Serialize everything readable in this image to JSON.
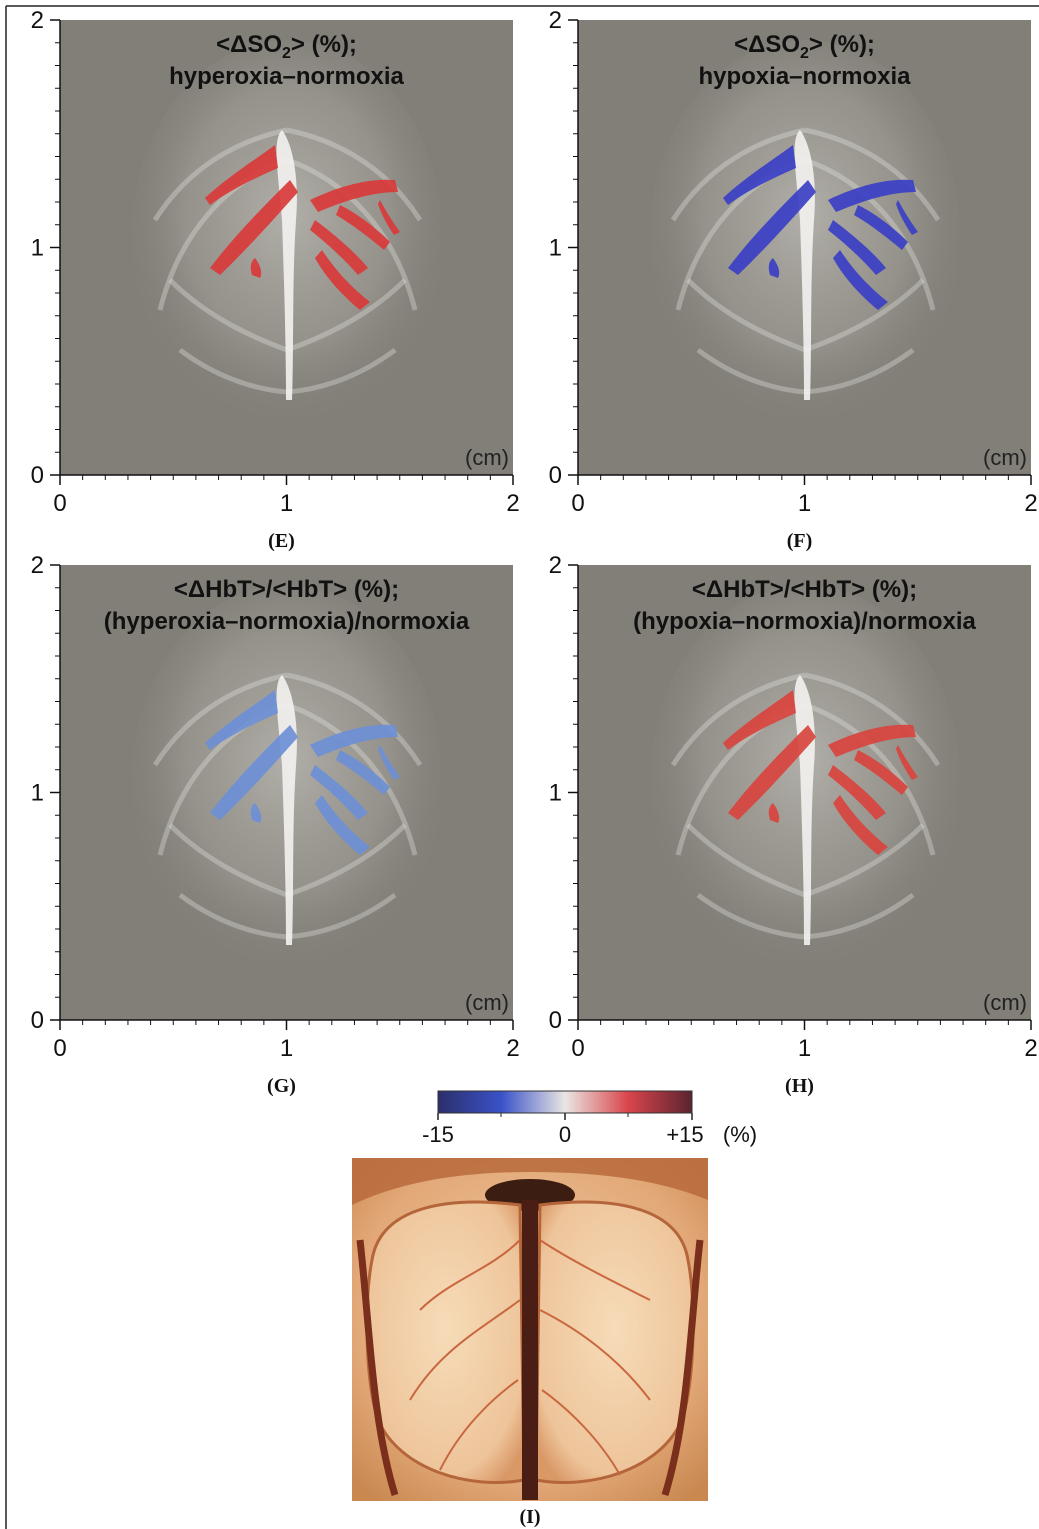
{
  "figure": {
    "panels": [
      {
        "letter": "(E)",
        "title_line1": "<ΔSO",
        "title_sub": "2",
        "title_line1_end": "> (%);",
        "title_line2": "hyperoxia–normoxia",
        "vessel_color": "#d83a3a",
        "x_ticks": [
          "0",
          "1",
          "2"
        ],
        "y_ticks": [
          "0",
          "1",
          "2"
        ],
        "unit": "(cm)"
      },
      {
        "letter": "(F)",
        "title_line1": "<ΔSO",
        "title_sub": "2",
        "title_line1_end": "> (%);",
        "title_line2": "hypoxia–normoxia",
        "vessel_color": "#3b3fc4",
        "x_ticks": [
          "0",
          "1",
          "2"
        ],
        "y_ticks": [
          "0",
          "1",
          "2"
        ],
        "unit": "(cm)"
      },
      {
        "letter": "(G)",
        "title_line1": "<ΔHbT>/<HbT> (%);",
        "title_sub": "",
        "title_line1_end": "",
        "title_line2": "(hyperoxia–normoxia)/normoxia",
        "vessel_color": "#6d8fd6",
        "x_ticks": [
          "0",
          "1",
          "2"
        ],
        "y_ticks": [
          "0",
          "1",
          "2"
        ],
        "unit": "(cm)"
      },
      {
        "letter": "(H)",
        "title_line1": "<ΔHbT>/<HbT> (%);",
        "title_sub": "",
        "title_line1_end": "",
        "title_line2": "(hypoxia–normoxia)/normoxia",
        "vessel_color": "#d8443e",
        "x_ticks": [
          "0",
          "1",
          "2"
        ],
        "y_ticks": [
          "0",
          "1",
          "2"
        ],
        "unit": "(cm)"
      }
    ],
    "colorbar": {
      "min_label": "-15",
      "mid_label": "0",
      "max_label": "+15",
      "unit": "(%)",
      "colors": [
        "#2b2f6b",
        "#3a52c8",
        "#e9e6e2",
        "#d9454b",
        "#5a2430"
      ]
    },
    "photo": {
      "letter": "(I)"
    },
    "colors": {
      "panel_bg": "#827f78",
      "axis": "#111111"
    }
  }
}
